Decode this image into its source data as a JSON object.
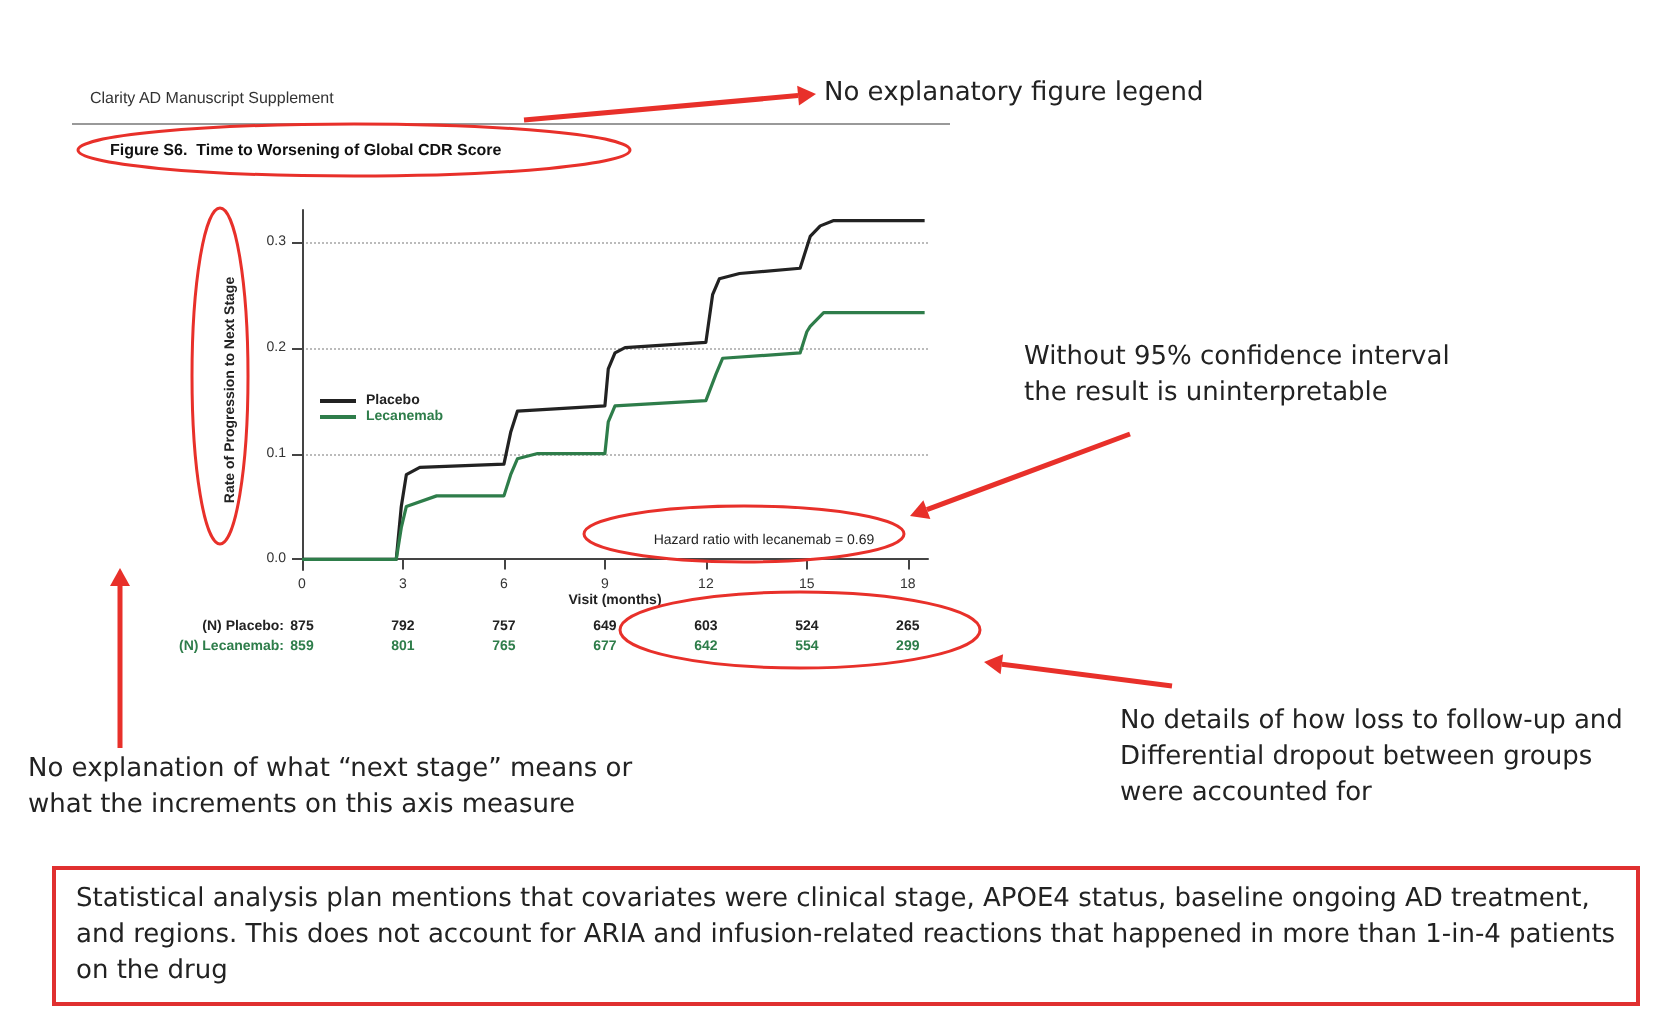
{
  "chart_data": {
    "type": "line",
    "title": "Figure S6.  Time to Worsening of Global CDR Score",
    "subtitle": "Clarity AD Manuscript Supplement",
    "xlabel": "Visit (months)",
    "ylabel": "Rate of Progression to Next Stage",
    "xlim": [
      0,
      18.6
    ],
    "xticks": [
      0,
      3,
      6,
      9,
      12,
      15,
      18
    ],
    "ylim": [
      -0.01,
      0.33
    ],
    "yticks": [
      {
        "value": 0,
        "label": "0.0"
      },
      {
        "value": 0.1,
        "label": "0.1"
      },
      {
        "value": 0.2,
        "label": "0.2"
      },
      {
        "value": 0.3,
        "label": "0.3"
      }
    ],
    "grid": "y",
    "legend": "left",
    "marker": "none",
    "line_style": "solid",
    "series": [
      {
        "name": "Placebo",
        "color": "#222222",
        "x": [
          0,
          2.8,
          2.95,
          3.1,
          3.5,
          6,
          6.2,
          6.4,
          9,
          9.1,
          9.3,
          9.6,
          12,
          12.2,
          12.4,
          13,
          14.8,
          15.1,
          15.4,
          15.8,
          18.5
        ],
        "values": [
          0,
          0,
          0.05,
          0.08,
          0.087,
          0.09,
          0.12,
          0.14,
          0.145,
          0.18,
          0.195,
          0.2,
          0.205,
          0.25,
          0.265,
          0.27,
          0.275,
          0.305,
          0.315,
          0.32,
          0.32
        ]
      },
      {
        "name": "Lecanemab",
        "color": "#2e7d4a",
        "x": [
          0,
          2.8,
          2.95,
          3.1,
          4,
          6,
          6.2,
          6.4,
          7,
          9,
          9.1,
          9.3,
          12,
          12.3,
          12.5,
          14.8,
          15,
          15.1,
          15.5,
          18.5
        ],
        "values": [
          0,
          0,
          0.03,
          0.05,
          0.06,
          0.06,
          0.08,
          0.095,
          0.1,
          0.1,
          0.13,
          0.145,
          0.15,
          0.175,
          0.19,
          0.195,
          0.215,
          0.22,
          0.233,
          0.233
        ]
      }
    ],
    "annotations": [
      "Hazard ratio with lecanemab = 0.69",
      "(N) Placebo:",
      "875",
      "792",
      "757",
      "649",
      "603",
      "524",
      "265",
      "(N) Lecanemab:",
      "859",
      "801",
      "765",
      "677",
      "642",
      "554",
      "299",
      "No explanatory figure legend",
      "Without 95% confidence interval the result is uninterpretable",
      "No details of how loss to follow-up and Differential dropout between groups were accounted for",
      "No explanation of what “next stage” means or what the increments on this axis measure",
      "Statistical analysis plan mentions that covariates were clinical stage, APOE4 status, baseline ongoing AD treatment, and regions. This does not account for ARIA and infusion-related reactions that happened in more than 1-in-4 patients on the drug"
    ]
  }
}
